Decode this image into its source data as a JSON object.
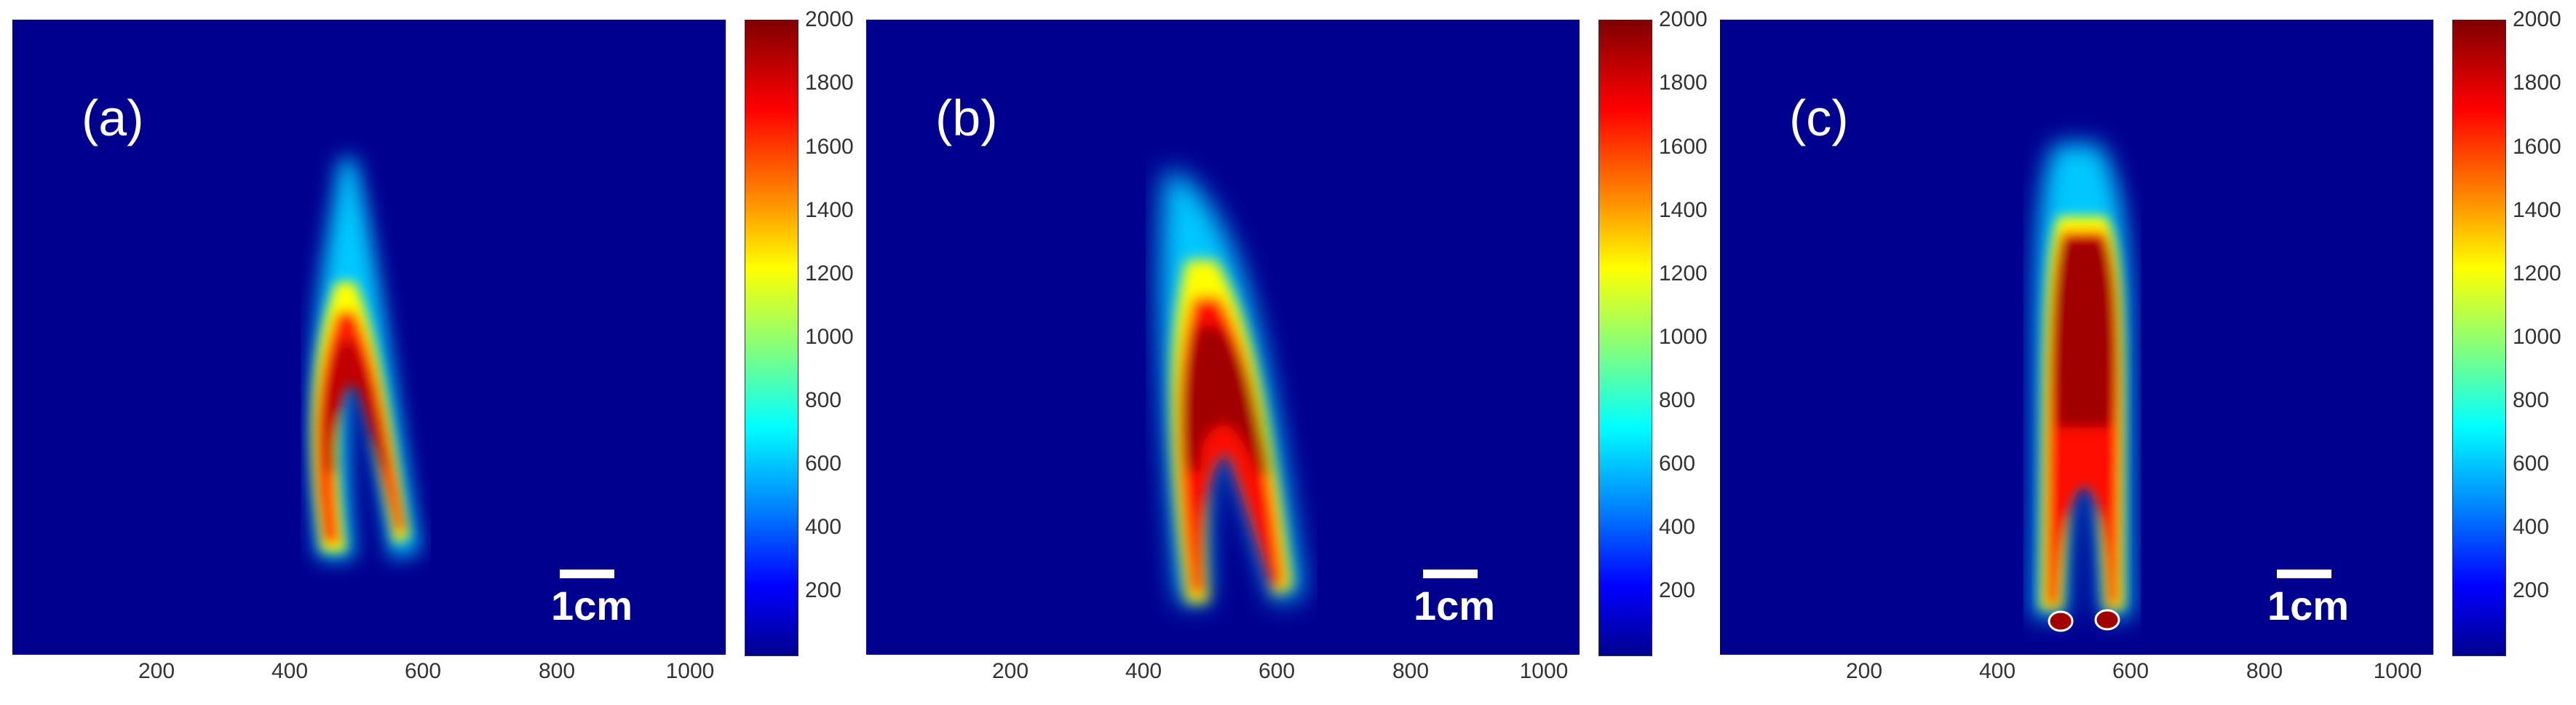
{
  "panels": [
    {
      "label": "(a)",
      "scalebar": "1cm"
    },
    {
      "label": "(b)",
      "scalebar": "1cm"
    },
    {
      "label": "(c)",
      "scalebar": "1cm"
    }
  ],
  "x_ticks": [
    "200",
    "400",
    "600",
    "800",
    "1000"
  ],
  "colorbar_ticks": [
    "2000",
    "1800",
    "1600",
    "1400",
    "1200",
    "1000",
    "800",
    "600",
    "400",
    "200"
  ],
  "colormap": "jet",
  "colors": {
    "background": "#00008f",
    "max": "#800000"
  }
}
